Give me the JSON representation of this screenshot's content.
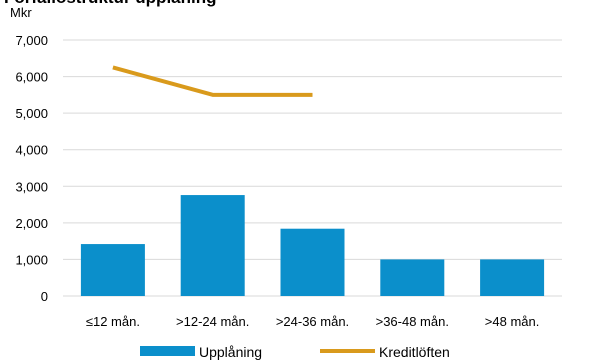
{
  "chart_data": {
    "type": "bar",
    "title": "Förfallostruktur upplåning",
    "unit_label": "Mkr",
    "categories": [
      "≤12 mån.",
      ">12-24 mån.",
      ">24-36 mån.",
      ">36-48 mån.",
      ">48 mån."
    ],
    "ylim": [
      0,
      7000
    ],
    "yticks": [
      "0",
      "1,000",
      "2,000",
      "3,000",
      "4,000",
      "5,000",
      "6,000",
      "7,000"
    ],
    "grid": true,
    "legend_position": "bottom",
    "series": [
      {
        "name": "Upplåning",
        "type": "bar",
        "color": "#0b8fcb",
        "values": [
          1420,
          2760,
          1840,
          1000,
          1000
        ]
      },
      {
        "name": "Kreditlöften",
        "type": "line",
        "color": "#d99a1c",
        "values": [
          6250,
          5500,
          5500,
          null,
          null
        ]
      }
    ]
  }
}
